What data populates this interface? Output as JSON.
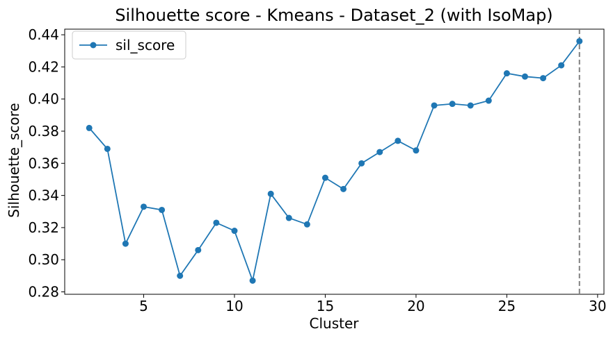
{
  "chart_data": {
    "type": "line",
    "title": "Silhouette score - Kmeans - Dataset_2 (with IsoMap)",
    "xlabel": "Cluster",
    "ylabel": "Silhouette_score",
    "xlim": [
      0.65,
      30.35
    ],
    "ylim": [
      0.2785,
      0.4435
    ],
    "xticks": [
      5,
      10,
      15,
      20,
      25,
      30
    ],
    "yticks": [
      0.28,
      0.3,
      0.32,
      0.34,
      0.36,
      0.38,
      0.4,
      0.42,
      0.44
    ],
    "ytick_labels": [
      "0.28",
      "0.30",
      "0.32",
      "0.34",
      "0.36",
      "0.38",
      "0.40",
      "0.42",
      "0.44"
    ],
    "grid": false,
    "legend": "top-left",
    "series": [
      {
        "name": "sil_score",
        "color": "#1f77b4",
        "marker": "circle",
        "x": [
          2,
          3,
          4,
          5,
          6,
          7,
          8,
          9,
          10,
          11,
          12,
          13,
          14,
          15,
          16,
          17,
          18,
          19,
          20,
          21,
          22,
          23,
          24,
          25,
          26,
          27,
          28,
          29
        ],
        "y": [
          0.382,
          0.369,
          0.31,
          0.333,
          0.331,
          0.29,
          0.306,
          0.323,
          0.318,
          0.287,
          0.341,
          0.326,
          0.322,
          0.351,
          0.344,
          0.36,
          0.367,
          0.374,
          0.368,
          0.396,
          0.397,
          0.396,
          0.399,
          0.416,
          0.414,
          0.413,
          0.421,
          0.436
        ]
      }
    ],
    "vline": {
      "x": 29,
      "color": "#808080",
      "style": "dashed"
    }
  }
}
